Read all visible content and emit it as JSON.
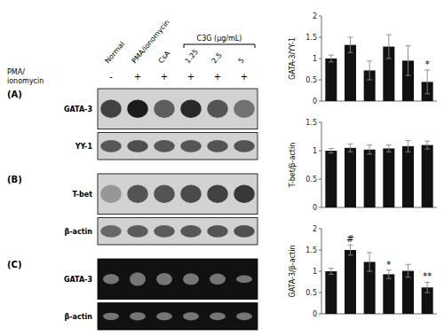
{
  "chart_data": [
    {
      "type": "header",
      "categories": [
        "Normal",
        "PMA/ionomycin",
        "CsA",
        "1.25",
        "2.5",
        "5"
      ],
      "annotations": [
        "C3G (μg/mL)"
      ],
      "ylabel": "PMA/\nionomycin",
      "value_labels": [
        "-",
        "+",
        "+",
        "+",
        "+",
        "+"
      ]
    },
    {
      "type": "bar",
      "title": "(A)",
      "ylabel": "GATA-3/YY-1",
      "color": "#111111",
      "ylim": [
        0,
        2
      ],
      "yticks": [
        0,
        0.5,
        1,
        1.5,
        2
      ],
      "values": [
        1.0,
        1.32,
        0.72,
        1.28,
        0.95,
        0.45
      ],
      "errors": [
        0.08,
        0.18,
        0.22,
        0.28,
        0.35,
        0.28
      ],
      "annotations": [
        null,
        null,
        null,
        null,
        null,
        "*"
      ]
    },
    {
      "type": "blot",
      "ylabel": "GATA-3",
      "color": "#111111",
      "values": [
        0.75,
        0.95,
        0.6,
        0.88,
        0.65,
        0.5
      ]
    },
    {
      "type": "blot",
      "ylabel": "YY-1",
      "color": "#222222",
      "values": [
        0.7,
        0.75,
        0.7,
        0.72,
        0.72,
        0.72
      ]
    },
    {
      "type": "bar",
      "title": "(B)",
      "ylabel": "T-bet/β-actin",
      "color": "#111111",
      "ylim": [
        0,
        1.5
      ],
      "yticks": [
        0,
        0.5,
        1,
        1.5
      ],
      "values": [
        1.0,
        1.05,
        1.02,
        1.04,
        1.08,
        1.1
      ],
      "errors": [
        0.04,
        0.07,
        0.08,
        0.06,
        0.1,
        0.07
      ],
      "annotations": [
        null,
        null,
        null,
        null,
        null,
        null
      ]
    },
    {
      "type": "blot",
      "ylabel": "T-bet",
      "color": "#111111",
      "values": [
        0.3,
        0.65,
        0.65,
        0.7,
        0.75,
        0.8
      ]
    },
    {
      "type": "blot",
      "ylabel": "β-actin",
      "color": "#222222",
      "values": [
        0.6,
        0.68,
        0.68,
        0.7,
        0.72,
        0.74
      ]
    },
    {
      "type": "bar",
      "title": "(C)",
      "ylabel": "GATA-3/β-actin",
      "color": "#111111",
      "ylim": [
        0,
        2
      ],
      "yticks": [
        0,
        0.5,
        1,
        1.5,
        2
      ],
      "values": [
        1.0,
        1.5,
        1.22,
        0.93,
        1.01,
        0.62
      ],
      "errors": [
        0.07,
        0.12,
        0.22,
        0.1,
        0.15,
        0.12
      ],
      "annotations": [
        null,
        "#",
        null,
        "*",
        null,
        "**"
      ]
    },
    {
      "type": "gel",
      "ylabel": "GATA-3",
      "color": "#888888",
      "values": [
        0.6,
        0.8,
        0.72,
        0.68,
        0.65,
        0.45
      ]
    },
    {
      "type": "gel",
      "ylabel": "β-actin",
      "color": "#888888",
      "values": [
        0.65,
        0.72,
        0.7,
        0.72,
        0.68,
        0.68
      ]
    }
  ]
}
